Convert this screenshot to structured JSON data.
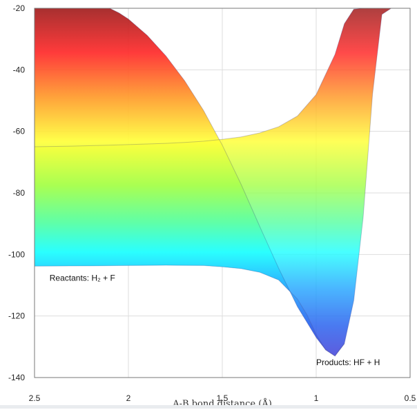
{
  "chart_data": {
    "type": "area",
    "xlabel": "A-B bond distance (Å)",
    "ylabel": "",
    "x_ticks": [
      "2.5",
      "2",
      "1.5",
      "1",
      "0.5"
    ],
    "y_ticks": [
      "-20",
      "-40",
      "-60",
      "-80",
      "-100",
      "-120",
      "-140"
    ],
    "xlim": [
      2.5,
      0.5
    ],
    "ylim": [
      -140,
      -20
    ],
    "x_reversed": true,
    "grid": true,
    "colormap": "jet",
    "series": [
      {
        "x": [
          2.5,
          2.2,
          2.0,
          1.8,
          1.6,
          1.5,
          1.4,
          1.3,
          1.2,
          1.1,
          1.05,
          1.0,
          0.95,
          0.9,
          0.85,
          0.8,
          0.75,
          0.7,
          0.65,
          0.6
        ],
        "y": [
          -103.8,
          -103.7,
          -103.6,
          -103.5,
          -103.6,
          -104.0,
          -104.6,
          -105.8,
          -108.3,
          -114.5,
          -119.5,
          -126.0,
          -131.0,
          -133.0,
          -129.0,
          -115.0,
          -88.0,
          -48.0,
          -22.0,
          -20.0
        ]
      },
      {
        "x": [
          2.5,
          2.3,
          2.1,
          2.0,
          1.9,
          1.8,
          1.7,
          1.6,
          1.5,
          1.4,
          1.3,
          1.2,
          1.1,
          1.0,
          0.9,
          0.85,
          0.8,
          0.75,
          0.7,
          0.65,
          0.6,
          0.5
        ],
        "y": [
          -65.0,
          -64.8,
          -64.5,
          -64.3,
          -64.1,
          -63.9,
          -63.6,
          -63.2,
          -62.6,
          -61.8,
          -60.5,
          -58.5,
          -55.0,
          -48.0,
          -35.0,
          -25.0,
          -20.3,
          -20.0,
          -20.0,
          -20.0,
          -20.0,
          -20.0
        ]
      },
      {
        "x": [
          2.5,
          2.1,
          2.05,
          2.0,
          1.9,
          1.8,
          1.7,
          1.6,
          1.5,
          1.4,
          1.3,
          1.2,
          1.1,
          1.0,
          0.95,
          0.9,
          0.85
        ],
        "y": [
          -20.0,
          -20.0,
          -21.5,
          -23.5,
          -28.8,
          -35.5,
          -43.6,
          -53.2,
          -64.5,
          -77.2,
          -91.0,
          -104.5,
          -117.0,
          -127.0,
          -131.0,
          -133.0,
          -129.0
        ]
      }
    ],
    "annotations": [
      {
        "text": "Reactants: H₂ + F",
        "x": 2.42,
        "y": -108.5
      },
      {
        "text": "Products: HF + H",
        "x": 1.0,
        "y": -136.0
      }
    ]
  }
}
